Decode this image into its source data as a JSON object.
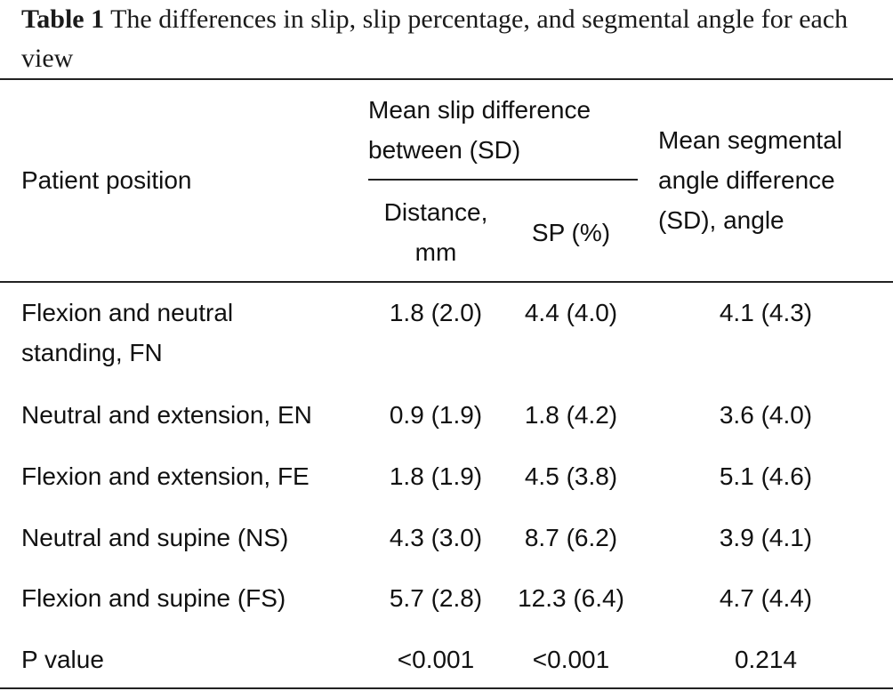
{
  "caption": {
    "label": "Table 1",
    "text": "The differences in slip, slip percentage, and segmental angle for each view"
  },
  "header": {
    "patient_position": "Patient position",
    "mean_slip_line1": "Mean slip difference",
    "mean_slip_line2": "between (SD)",
    "distance_line1": "Distance,",
    "distance_line2": "mm",
    "sp": "SP (%)",
    "angle_line1": "Mean segmental",
    "angle_line2": "angle difference",
    "angle_line3": "(SD), angle"
  },
  "rows": [
    {
      "position_line1": "Flexion and neutral",
      "position_line2": "standing, FN",
      "distance": "1.8 (2.0)",
      "sp": "4.4 (4.0)",
      "angle": "4.1 (4.3)"
    },
    {
      "position_line1": "Neutral and extension, EN",
      "position_line2": "",
      "distance": "0.9 (1.9)",
      "sp": "1.8 (4.2)",
      "angle": "3.6 (4.0)"
    },
    {
      "position_line1": "Flexion and extension, FE",
      "position_line2": "",
      "distance": "1.8 (1.9)",
      "sp": "4.5 (3.8)",
      "angle": "5.1 (4.6)"
    },
    {
      "position_line1": "Neutral and supine (NS)",
      "position_line2": "",
      "distance": "4.3 (3.0)",
      "sp": "8.7 (6.2)",
      "angle": "3.9 (4.1)"
    },
    {
      "position_line1": "Flexion and supine (FS)",
      "position_line2": "",
      "distance": "5.7 (2.8)",
      "sp": "12.3 (6.4)",
      "angle": "4.7 (4.4)"
    },
    {
      "position_line1": "P value",
      "position_line2": "",
      "distance": "<0.001",
      "sp": "<0.001",
      "angle": "0.214"
    }
  ]
}
